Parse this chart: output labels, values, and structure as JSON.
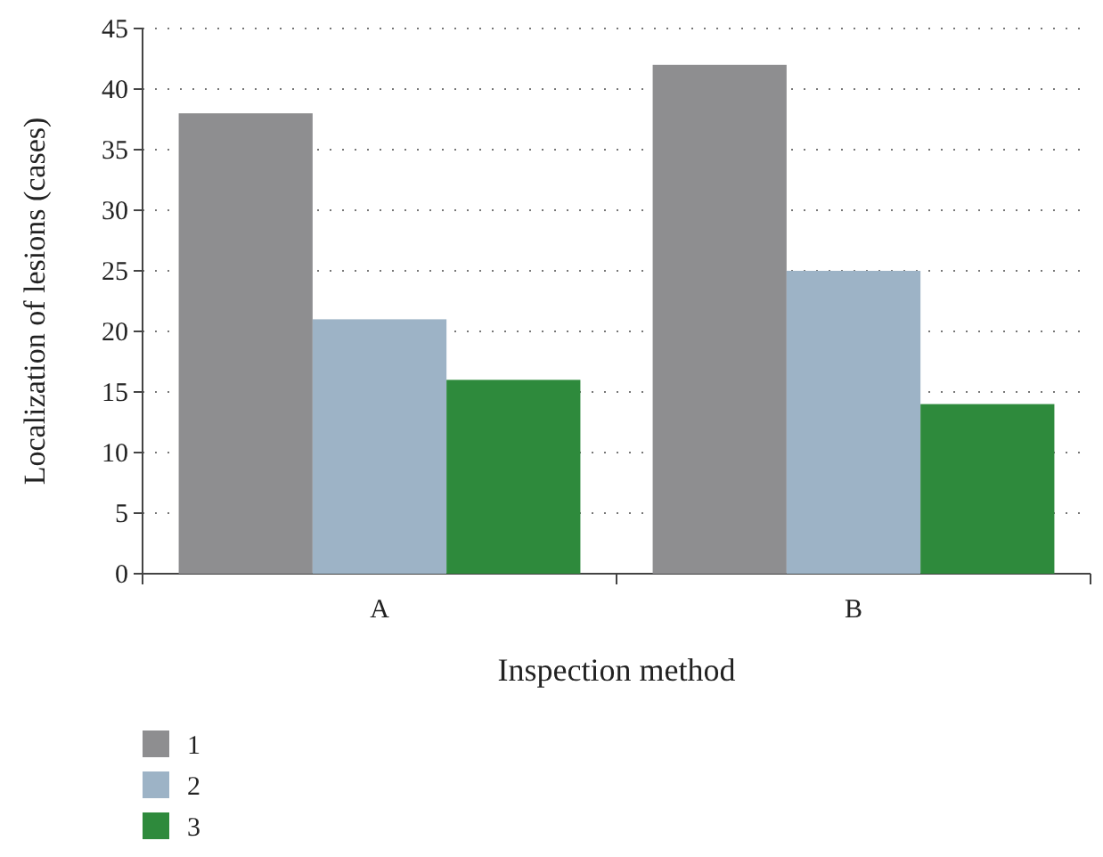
{
  "chart_data": {
    "type": "bar",
    "xlabel": "Inspection method",
    "ylabel": "Localization of lesions (cases)",
    "categories": [
      "A",
      "B"
    ],
    "series": [
      {
        "name": "1",
        "color": "#8e8e90",
        "values": [
          38,
          42
        ]
      },
      {
        "name": "2",
        "color": "#9db3c6",
        "values": [
          21,
          25
        ]
      },
      {
        "name": "3",
        "color": "#2e8a3c",
        "values": [
          16,
          14
        ]
      }
    ],
    "ylim": [
      0,
      45
    ],
    "yticks": [
      0,
      5,
      10,
      15,
      20,
      25,
      30,
      35,
      40,
      45
    ],
    "grid": "y",
    "legend": "bottom left"
  }
}
